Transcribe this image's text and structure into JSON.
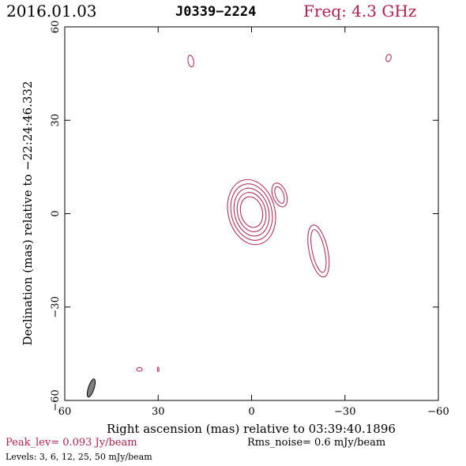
{
  "header": {
    "date": "2016.01.03",
    "source": "J0339−2224",
    "freq": "Freq: 4.3 GHz"
  },
  "axes": {
    "x_label": "Right ascension (mas) relative to 03:39:40.1896",
    "y_label": "Declination (mas) relative to −22:24:46.332",
    "x_ticks": [
      "60",
      "30",
      "0",
      "−30",
      "−60"
    ],
    "y_ticks": [
      "60",
      "30",
      "0",
      "−30",
      "−60"
    ]
  },
  "footer": {
    "peak": "Peak_lev=  0.093 Jy/beam",
    "rms": "Rms_noise=  0.6 mJy/beam",
    "levels": "Levels:   3,   6,  12,  25,  50 mJy/beam"
  },
  "colors": {
    "contour": "#b0204a",
    "beam_fill": "#808080"
  },
  "chart_data": {
    "type": "contour",
    "xlim": [
      60,
      -60
    ],
    "ylim": [
      -60,
      60
    ],
    "levels_mJy_per_beam": [
      3,
      6,
      12,
      25,
      50
    ],
    "components": [
      {
        "name": "core",
        "ra": 0,
        "dec": 0.5,
        "n_contours": 5
      },
      {
        "name": "jet-knot",
        "ra": -21.5,
        "dec": -12,
        "n_contours": 2
      },
      {
        "name": "knot-ne",
        "ra": -9,
        "dec": 6,
        "n_contours": 2
      },
      {
        "name": "noise-top-left",
        "ra": 19.5,
        "dec": 49,
        "n_contours": 1
      },
      {
        "name": "noise-top-right",
        "ra": -44,
        "dec": 50,
        "n_contours": 1
      },
      {
        "name": "noise-bottom-1",
        "ra": 36,
        "dec": -50,
        "n_contours": 1
      },
      {
        "name": "noise-bottom-2",
        "ra": 30,
        "dec": -50,
        "n_contours": 1
      }
    ],
    "beam": {
      "ra": 51.5,
      "dec": -56
    }
  }
}
